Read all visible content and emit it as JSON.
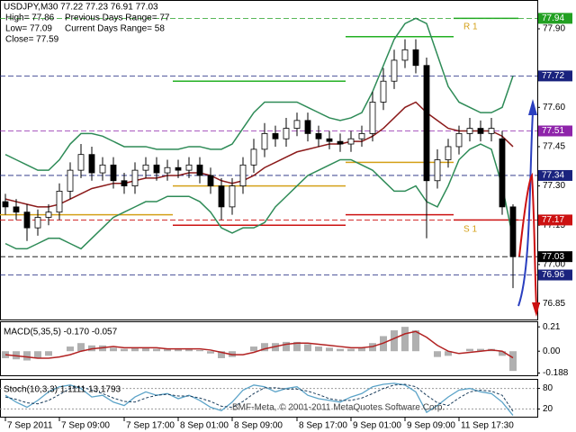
{
  "chart_data": [
    {
      "type": "candlestick",
      "title": "USDJPY,M30  77.22 77.23 76.91 77.03",
      "annotations": [
        "High= 77.86",
        "Low= 77.09",
        "Close= 77.59",
        "Previous Days Range= 77",
        "Current Days Range= 58",
        "R 1",
        "S 1"
      ],
      "categories": [
        "7 Sep 2011",
        null,
        null,
        null,
        null,
        "7 Sep 09:00",
        null,
        null,
        null,
        null,
        null,
        "7 Sep 17:00",
        null,
        null,
        null,
        null,
        "8 Sep 01:00",
        null,
        null,
        null,
        null,
        "8 Sep 09:00",
        null,
        null,
        null,
        null,
        null,
        "8 Sep 17:00",
        null,
        null,
        null,
        null,
        "9 Sep 01:00",
        null,
        null,
        null,
        null,
        "9 Sep 09:00",
        null,
        null,
        null,
        null,
        "11 Sep 17:30",
        null,
        null,
        null,
        null,
        null
      ],
      "open": [
        77.24,
        77.22,
        77.2,
        77.14,
        77.18,
        77.2,
        77.28,
        77.36,
        77.42,
        77.35,
        77.38,
        77.32,
        77.3,
        77.36,
        77.38,
        77.35,
        77.37,
        77.36,
        77.38,
        77.34,
        77.3,
        77.22,
        77.3,
        77.38,
        77.44,
        77.5,
        77.48,
        77.52,
        77.55,
        77.5,
        77.48,
        77.47,
        77.46,
        77.48,
        77.5,
        77.62,
        77.7,
        77.78,
        77.82,
        77.76,
        77.32,
        77.4,
        77.45,
        77.5,
        77.52,
        77.5,
        77.48,
        77.22
      ],
      "high": [
        77.27,
        77.25,
        77.23,
        77.21,
        77.23,
        77.31,
        77.39,
        77.46,
        77.45,
        77.41,
        77.41,
        77.35,
        77.39,
        77.41,
        77.41,
        77.4,
        77.4,
        77.41,
        77.41,
        77.37,
        77.33,
        77.33,
        77.41,
        77.48,
        77.54,
        77.53,
        77.56,
        77.58,
        77.58,
        77.53,
        77.51,
        77.5,
        77.51,
        77.53,
        77.66,
        77.75,
        77.82,
        77.86,
        77.86,
        77.79,
        77.44,
        77.48,
        77.53,
        77.56,
        77.55,
        77.56,
        77.51,
        77.23
      ],
      "low": [
        77.19,
        77.17,
        77.09,
        77.11,
        77.15,
        77.17,
        77.25,
        77.33,
        77.32,
        77.32,
        77.29,
        77.27,
        77.27,
        77.33,
        77.32,
        77.32,
        77.33,
        77.33,
        77.31,
        77.27,
        77.17,
        77.19,
        77.27,
        77.35,
        77.41,
        77.45,
        77.45,
        77.49,
        77.47,
        77.45,
        77.44,
        77.43,
        77.43,
        77.45,
        77.47,
        77.59,
        77.67,
        77.75,
        77.73,
        77.1,
        77.29,
        77.37,
        77.42,
        77.47,
        77.47,
        77.47,
        77.19,
        76.91
      ],
      "close": [
        77.22,
        77.2,
        77.14,
        77.18,
        77.2,
        77.28,
        77.36,
        77.42,
        77.35,
        77.38,
        77.32,
        77.3,
        77.36,
        77.38,
        77.35,
        77.37,
        77.36,
        77.38,
        77.34,
        77.3,
        77.22,
        77.3,
        77.38,
        77.44,
        77.5,
        77.48,
        77.52,
        77.55,
        77.5,
        77.48,
        77.47,
        77.46,
        77.48,
        77.5,
        77.62,
        77.7,
        77.78,
        77.82,
        77.76,
        77.32,
        77.4,
        77.45,
        77.5,
        77.52,
        77.5,
        77.52,
        77.22,
        77.03
      ],
      "overlays": [
        {
          "color": "#2e8b57",
          "values": [
            77.42,
            77.4,
            77.38,
            77.36,
            77.36,
            77.4,
            77.46,
            77.5,
            77.5,
            77.49,
            77.47,
            77.45,
            77.45,
            77.45,
            77.44,
            77.44,
            77.44,
            77.45,
            77.45,
            77.44,
            77.44,
            77.46,
            77.52,
            77.58,
            77.62,
            77.62,
            77.62,
            77.62,
            77.6,
            77.58,
            77.56,
            77.55,
            77.56,
            77.58,
            77.66,
            77.76,
            77.86,
            77.92,
            77.94,
            77.92,
            77.8,
            77.68,
            77.62,
            77.6,
            77.58,
            77.58,
            77.6,
            77.72
          ]
        },
        {
          "color": "#2e8b57",
          "values": [
            77.08,
            77.06,
            77.06,
            77.08,
            77.1,
            77.1,
            77.08,
            77.06,
            77.1,
            77.14,
            77.18,
            77.2,
            77.22,
            77.24,
            77.24,
            77.26,
            77.26,
            77.26,
            77.24,
            77.2,
            77.14,
            77.12,
            77.14,
            77.14,
            77.16,
            77.22,
            77.26,
            77.3,
            77.34,
            77.36,
            77.38,
            77.4,
            77.4,
            77.38,
            77.36,
            77.32,
            77.28,
            77.28,
            77.3,
            77.24,
            77.22,
            77.3,
            77.4,
            77.44,
            77.46,
            77.44,
            77.3,
            77.1
          ]
        },
        {
          "color": "#8b1a1a",
          "values": [
            77.25,
            77.24,
            77.23,
            77.22,
            77.22,
            77.23,
            77.25,
            77.27,
            77.29,
            77.3,
            77.31,
            77.31,
            77.32,
            77.33,
            77.33,
            77.34,
            77.34,
            77.35,
            77.35,
            77.34,
            77.32,
            77.31,
            77.32,
            77.34,
            77.37,
            77.39,
            77.41,
            77.43,
            77.44,
            77.45,
            77.46,
            77.46,
            77.47,
            77.47,
            77.49,
            77.52,
            77.56,
            77.6,
            77.62,
            77.58,
            77.55,
            77.52,
            77.51,
            77.51,
            77.51,
            77.51,
            77.49,
            77.45
          ]
        }
      ],
      "steps": [
        {
          "color": "#d4a017",
          "values": [
            77.19,
            77.19,
            77.19,
            77.19,
            77.19,
            77.19,
            77.19,
            77.19,
            77.19,
            77.19,
            77.19,
            77.19,
            77.19,
            77.19,
            77.19,
            77.19,
            77.3,
            77.3,
            77.3,
            77.3,
            77.3,
            77.3,
            77.3,
            77.3,
            77.3,
            77.3,
            77.3,
            77.3,
            77.3,
            77.3,
            77.3,
            77.3,
            77.39,
            77.39,
            77.39,
            77.39,
            77.39,
            77.39,
            77.39,
            77.39,
            77.39,
            77.39,
            null,
            null,
            null,
            null,
            null,
            null
          ]
        },
        {
          "color": "#22b022",
          "values": [
            null,
            null,
            null,
            null,
            null,
            null,
            null,
            null,
            null,
            null,
            null,
            null,
            null,
            null,
            null,
            null,
            77.7,
            77.7,
            77.7,
            77.7,
            77.7,
            77.7,
            77.7,
            77.7,
            77.7,
            77.7,
            77.7,
            77.7,
            77.7,
            77.7,
            77.7,
            77.7,
            77.87,
            77.87,
            77.87,
            77.87,
            77.87,
            77.87,
            77.87,
            77.87,
            77.87,
            77.87,
            77.94,
            77.94,
            77.94,
            77.94,
            77.94,
            77.94
          ]
        },
        {
          "color": "#cc1111",
          "values": [
            null,
            null,
            null,
            null,
            null,
            null,
            null,
            null,
            null,
            null,
            null,
            null,
            null,
            null,
            null,
            null,
            77.15,
            77.15,
            77.15,
            77.15,
            77.15,
            77.15,
            77.15,
            77.15,
            77.15,
            77.15,
            77.15,
            77.15,
            77.15,
            77.15,
            77.15,
            77.15,
            77.19,
            77.19,
            77.19,
            77.19,
            77.19,
            77.19,
            77.19,
            77.19,
            77.19,
            77.19,
            77.17,
            77.17,
            77.17,
            77.17,
            77.17,
            77.17
          ]
        }
      ],
      "levels": [
        {
          "value": 77.94,
          "color": "#22a022"
        },
        {
          "value": 77.72,
          "color": "#1a237e"
        },
        {
          "value": 77.51,
          "color": "#8e24aa"
        },
        {
          "value": 77.34,
          "color": "#1a237e"
        },
        {
          "value": 77.17,
          "color": "#cc1111"
        },
        {
          "value": 77.03,
          "color": "#000000"
        },
        {
          "value": 76.96,
          "color": "#1a237e"
        }
      ],
      "ylim": [
        76.79,
        78.01
      ],
      "yticks": [
        {
          "value": 77.9,
          "label": "77.90"
        },
        {
          "value": 77.6,
          "label": "77.60"
        },
        77.45,
        {
          "value": 77.3,
          "label": "77.30"
        },
        77.15,
        {
          "value": 77.0,
          "label": "77.00"
        },
        76.85
      ]
    },
    {
      "type": "macd",
      "title": "MACD(5,35,5) -0.170 -0.057",
      "series": [
        {
          "color": "#b0b0b0",
          "style": "bar",
          "values": [
            -0.06,
            -0.07,
            -0.08,
            -0.06,
            -0.04,
            0.0,
            0.04,
            0.07,
            0.05,
            0.05,
            0.03,
            0.02,
            0.03,
            0.03,
            0.02,
            0.02,
            0.02,
            0.02,
            0.01,
            -0.02,
            -0.06,
            -0.05,
            0.0,
            0.04,
            0.07,
            0.07,
            0.08,
            0.08,
            0.06,
            0.04,
            0.03,
            0.02,
            0.02,
            0.03,
            0.07,
            0.13,
            0.18,
            0.21,
            0.18,
            0.0,
            -0.05,
            -0.04,
            0.0,
            0.02,
            0.02,
            0.02,
            -0.04,
            -0.17
          ]
        },
        {
          "color": "#b22222",
          "style": "line",
          "values": [
            -0.03,
            -0.04,
            -0.05,
            -0.06,
            -0.06,
            -0.05,
            -0.03,
            0.0,
            0.02,
            0.03,
            0.04,
            0.03,
            0.03,
            0.03,
            0.03,
            0.02,
            0.02,
            0.02,
            0.02,
            0.01,
            -0.01,
            -0.03,
            -0.03,
            -0.01,
            0.02,
            0.04,
            0.06,
            0.07,
            0.07,
            0.06,
            0.05,
            0.04,
            0.03,
            0.03,
            0.04,
            0.07,
            0.11,
            0.15,
            0.17,
            0.12,
            0.05,
            0.0,
            -0.02,
            -0.01,
            0.0,
            0.01,
            0.0,
            -0.057
          ]
        }
      ],
      "ylim": [
        -0.2,
        0.25
      ],
      "yticks": [
        0.21,
        {
          "value": 0,
          "label": "0.00"
        },
        -0.188
      ]
    },
    {
      "type": "stochastic",
      "title": "Stoch(10,3,3) 1.1111 13.1793",
      "series": [
        {
          "color": "#5ba3c8",
          "style": "line",
          "values": [
            60,
            40,
            25,
            45,
            70,
            85,
            90,
            80,
            55,
            60,
            40,
            30,
            55,
            70,
            60,
            65,
            50,
            60,
            45,
            25,
            15,
            40,
            75,
            90,
            85,
            70,
            80,
            85,
            60,
            50,
            45,
            40,
            55,
            65,
            85,
            92,
            95,
            90,
            70,
            10,
            30,
            55,
            75,
            80,
            70,
            65,
            40,
            1.1111
          ]
        },
        {
          "color": "#1a3d5c",
          "style": "dash",
          "values": [
            55,
            48,
            38,
            35,
            45,
            62,
            80,
            85,
            75,
            65,
            52,
            42,
            40,
            52,
            60,
            63,
            58,
            58,
            52,
            42,
            28,
            25,
            42,
            65,
            82,
            82,
            78,
            78,
            72,
            62,
            50,
            45,
            45,
            52,
            65,
            80,
            90,
            92,
            85,
            60,
            38,
            30,
            52,
            70,
            75,
            72,
            60,
            13.1793
          ]
        }
      ],
      "ylim": [
        0,
        100
      ],
      "yticks": [
        80,
        20
      ]
    }
  ],
  "footer": "BMF-Meta, © 2001-2011 MetaQuotes Software Corp."
}
